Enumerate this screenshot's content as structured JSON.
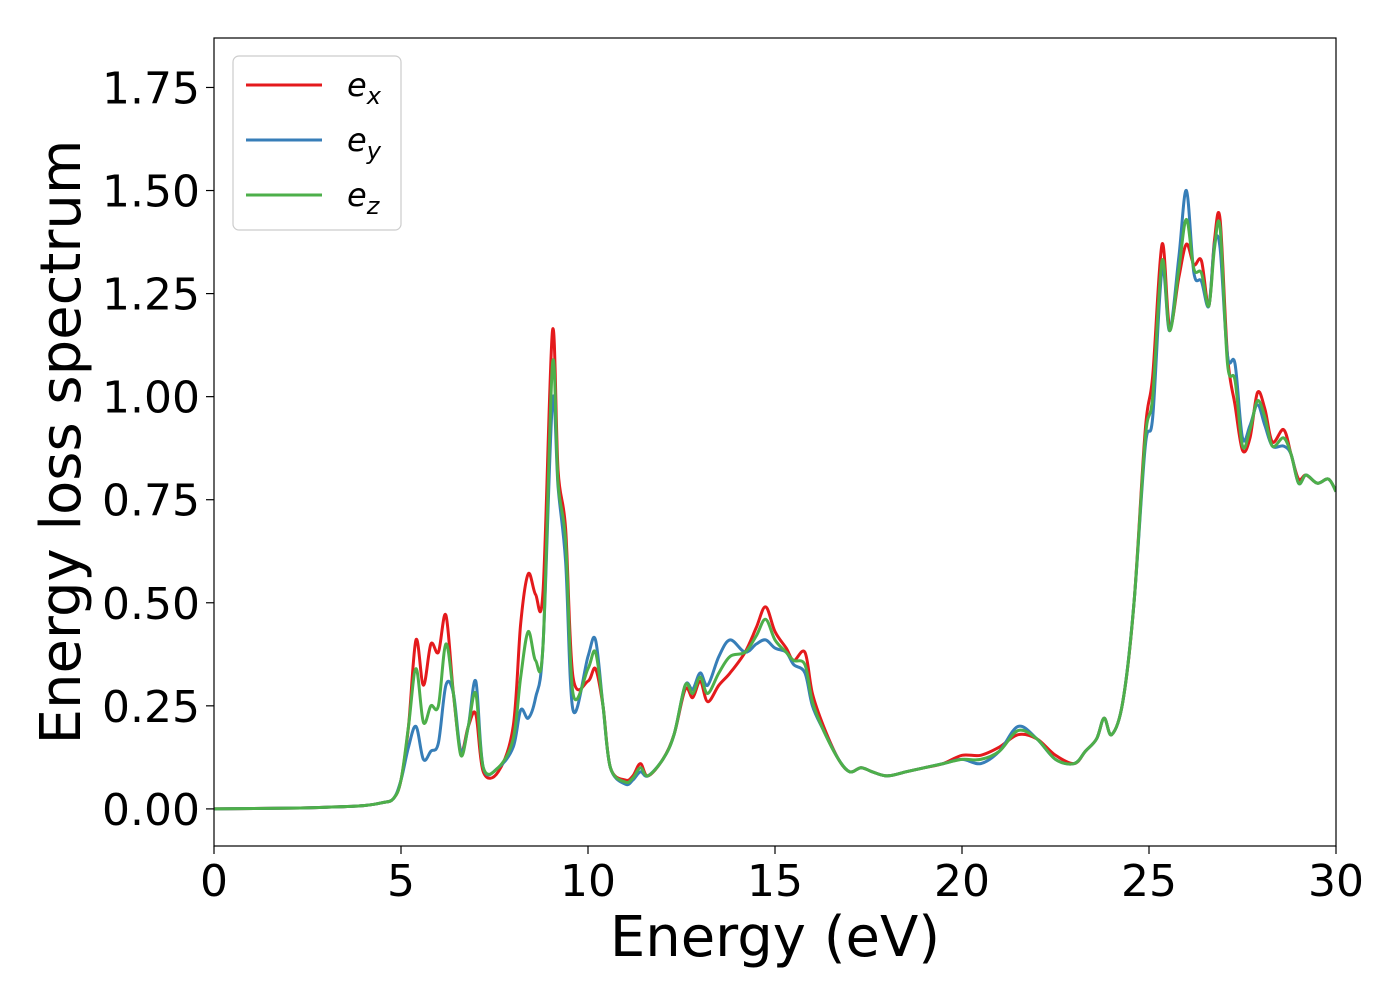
{
  "chart_data": {
    "type": "line",
    "xlabel": "Energy (eV)",
    "ylabel": "Energy loss spectrum",
    "xlim": [
      0,
      30
    ],
    "ylim": [
      -0.09,
      1.87
    ],
    "xticks": [
      "0",
      "5",
      "10",
      "15",
      "20",
      "25",
      "30"
    ],
    "yticks": [
      "0.00",
      "0.25",
      "0.50",
      "0.75",
      "1.00",
      "1.25",
      "1.50",
      "1.75"
    ],
    "grid": false,
    "legend_position": "top-left",
    "series": [
      {
        "name": "e_x",
        "legend_base": "e",
        "legend_sub": "x",
        "color": "#e41a1c",
        "x": [
          0,
          2,
          3,
          4,
          4.5,
          4.8,
          5.0,
          5.2,
          5.4,
          5.6,
          5.8,
          6.0,
          6.2,
          6.4,
          6.6,
          6.8,
          7.0,
          7.2,
          7.6,
          8.0,
          8.2,
          8.4,
          8.6,
          8.8,
          9.05,
          9.2,
          9.4,
          9.6,
          10.0,
          10.2,
          10.4,
          10.6,
          11.0,
          11.2,
          11.4,
          11.6,
          12.0,
          12.3,
          12.6,
          12.8,
          13.0,
          13.2,
          13.5,
          13.8,
          14.2,
          14.5,
          14.75,
          15.0,
          15.3,
          15.5,
          15.8,
          16.0,
          16.3,
          16.7,
          17.0,
          17.3,
          17.6,
          18.0,
          18.5,
          19.0,
          19.5,
          20.0,
          20.5,
          21.0,
          21.5,
          22.0,
          22.5,
          23.0,
          23.3,
          23.6,
          23.8,
          24.0,
          24.3,
          24.6,
          24.9,
          25.1,
          25.35,
          25.55,
          25.8,
          26.0,
          26.2,
          26.4,
          26.6,
          26.75,
          26.9,
          27.1,
          27.3,
          27.5,
          27.7,
          27.9,
          28.1,
          28.3,
          28.6,
          28.8,
          29.0,
          29.2,
          29.5,
          29.8,
          30.0
        ],
        "y": [
          0.0,
          0.002,
          0.004,
          0.008,
          0.015,
          0.025,
          0.07,
          0.2,
          0.41,
          0.3,
          0.4,
          0.38,
          0.47,
          0.28,
          0.14,
          0.2,
          0.23,
          0.09,
          0.09,
          0.2,
          0.45,
          0.57,
          0.52,
          0.53,
          1.16,
          0.82,
          0.68,
          0.32,
          0.31,
          0.34,
          0.25,
          0.1,
          0.07,
          0.08,
          0.11,
          0.08,
          0.12,
          0.18,
          0.29,
          0.27,
          0.31,
          0.26,
          0.3,
          0.33,
          0.38,
          0.44,
          0.49,
          0.43,
          0.39,
          0.36,
          0.38,
          0.28,
          0.2,
          0.12,
          0.09,
          0.1,
          0.09,
          0.08,
          0.09,
          0.1,
          0.11,
          0.13,
          0.13,
          0.15,
          0.18,
          0.17,
          0.13,
          0.11,
          0.14,
          0.17,
          0.22,
          0.18,
          0.26,
          0.5,
          0.92,
          1.05,
          1.37,
          1.17,
          1.29,
          1.37,
          1.32,
          1.33,
          1.22,
          1.38,
          1.43,
          1.1,
          0.98,
          0.87,
          0.9,
          1.01,
          0.97,
          0.89,
          0.92,
          0.86,
          0.8,
          0.81,
          0.79,
          0.8,
          0.77
        ]
      },
      {
        "name": "e_y",
        "legend_base": "e",
        "legend_sub": "y",
        "color": "#377eb8",
        "x": [
          0,
          2,
          3,
          4,
          4.5,
          4.8,
          5.0,
          5.2,
          5.4,
          5.6,
          5.8,
          6.0,
          6.2,
          6.4,
          6.6,
          6.8,
          7.0,
          7.2,
          7.6,
          8.0,
          8.2,
          8.4,
          8.6,
          8.8,
          9.05,
          9.2,
          9.4,
          9.6,
          10.0,
          10.2,
          10.4,
          10.6,
          11.0,
          11.2,
          11.4,
          11.6,
          12.0,
          12.3,
          12.6,
          12.8,
          13.0,
          13.2,
          13.5,
          13.8,
          14.2,
          14.5,
          14.75,
          15.0,
          15.3,
          15.5,
          15.8,
          16.0,
          16.3,
          16.7,
          17.0,
          17.3,
          17.6,
          18.0,
          18.5,
          19.0,
          19.5,
          20.0,
          20.5,
          21.0,
          21.5,
          22.0,
          22.5,
          23.0,
          23.3,
          23.6,
          23.8,
          24.0,
          24.3,
          24.6,
          24.9,
          25.1,
          25.35,
          25.55,
          25.8,
          26.0,
          26.2,
          26.4,
          26.6,
          26.75,
          26.9,
          27.1,
          27.3,
          27.5,
          27.7,
          27.9,
          28.1,
          28.3,
          28.6,
          28.8,
          29.0,
          29.2,
          29.5,
          29.8,
          30.0
        ],
        "y": [
          0.0,
          0.002,
          0.004,
          0.008,
          0.015,
          0.025,
          0.07,
          0.15,
          0.2,
          0.12,
          0.14,
          0.16,
          0.3,
          0.28,
          0.14,
          0.2,
          0.31,
          0.1,
          0.1,
          0.15,
          0.24,
          0.22,
          0.27,
          0.4,
          0.99,
          0.78,
          0.6,
          0.24,
          0.37,
          0.41,
          0.25,
          0.1,
          0.06,
          0.07,
          0.09,
          0.08,
          0.12,
          0.18,
          0.3,
          0.29,
          0.33,
          0.3,
          0.37,
          0.41,
          0.38,
          0.4,
          0.41,
          0.39,
          0.38,
          0.35,
          0.33,
          0.25,
          0.19,
          0.12,
          0.09,
          0.1,
          0.09,
          0.08,
          0.09,
          0.1,
          0.11,
          0.12,
          0.11,
          0.14,
          0.2,
          0.17,
          0.12,
          0.11,
          0.14,
          0.17,
          0.22,
          0.18,
          0.26,
          0.5,
          0.88,
          0.95,
          1.31,
          1.16,
          1.34,
          1.5,
          1.3,
          1.28,
          1.22,
          1.37,
          1.36,
          1.1,
          1.08,
          0.9,
          0.93,
          0.98,
          0.93,
          0.88,
          0.88,
          0.86,
          0.79,
          0.81,
          0.79,
          0.8,
          0.77
        ]
      },
      {
        "name": "e_z",
        "legend_base": "e",
        "legend_sub": "z",
        "color": "#4daf4a",
        "x": [
          0,
          2,
          3,
          4,
          4.5,
          4.8,
          5.0,
          5.2,
          5.4,
          5.6,
          5.8,
          6.0,
          6.2,
          6.4,
          6.6,
          6.8,
          7.0,
          7.2,
          7.6,
          8.0,
          8.2,
          8.4,
          8.6,
          8.8,
          9.05,
          9.2,
          9.4,
          9.6,
          10.0,
          10.2,
          10.4,
          10.6,
          11.0,
          11.2,
          11.4,
          11.6,
          12.0,
          12.3,
          12.6,
          12.8,
          13.0,
          13.2,
          13.5,
          13.8,
          14.2,
          14.5,
          14.75,
          15.0,
          15.3,
          15.5,
          15.8,
          16.0,
          16.3,
          16.7,
          17.0,
          17.3,
          17.6,
          18.0,
          18.5,
          19.0,
          19.5,
          20.0,
          20.5,
          21.0,
          21.5,
          22.0,
          22.5,
          23.0,
          23.3,
          23.6,
          23.8,
          24.0,
          24.3,
          24.6,
          24.9,
          25.1,
          25.35,
          25.55,
          25.8,
          26.0,
          26.2,
          26.4,
          26.6,
          26.75,
          26.9,
          27.1,
          27.3,
          27.5,
          27.7,
          27.9,
          28.1,
          28.3,
          28.6,
          28.8,
          29.0,
          29.2,
          29.5,
          29.8,
          30.0
        ],
        "y": [
          0.0,
          0.002,
          0.004,
          0.008,
          0.015,
          0.025,
          0.07,
          0.2,
          0.34,
          0.21,
          0.25,
          0.25,
          0.4,
          0.28,
          0.13,
          0.2,
          0.28,
          0.1,
          0.1,
          0.17,
          0.32,
          0.43,
          0.36,
          0.4,
          1.08,
          0.79,
          0.65,
          0.28,
          0.34,
          0.38,
          0.25,
          0.1,
          0.065,
          0.075,
          0.1,
          0.08,
          0.12,
          0.18,
          0.3,
          0.28,
          0.32,
          0.28,
          0.33,
          0.37,
          0.38,
          0.42,
          0.46,
          0.41,
          0.38,
          0.36,
          0.35,
          0.26,
          0.19,
          0.12,
          0.09,
          0.1,
          0.09,
          0.08,
          0.09,
          0.1,
          0.11,
          0.12,
          0.12,
          0.14,
          0.19,
          0.17,
          0.12,
          0.11,
          0.14,
          0.17,
          0.22,
          0.18,
          0.26,
          0.5,
          0.9,
          1.0,
          1.33,
          1.16,
          1.31,
          1.43,
          1.31,
          1.3,
          1.22,
          1.36,
          1.41,
          1.08,
          1.04,
          0.88,
          0.92,
          0.99,
          0.95,
          0.88,
          0.9,
          0.86,
          0.79,
          0.81,
          0.79,
          0.8,
          0.77
        ]
      }
    ]
  }
}
